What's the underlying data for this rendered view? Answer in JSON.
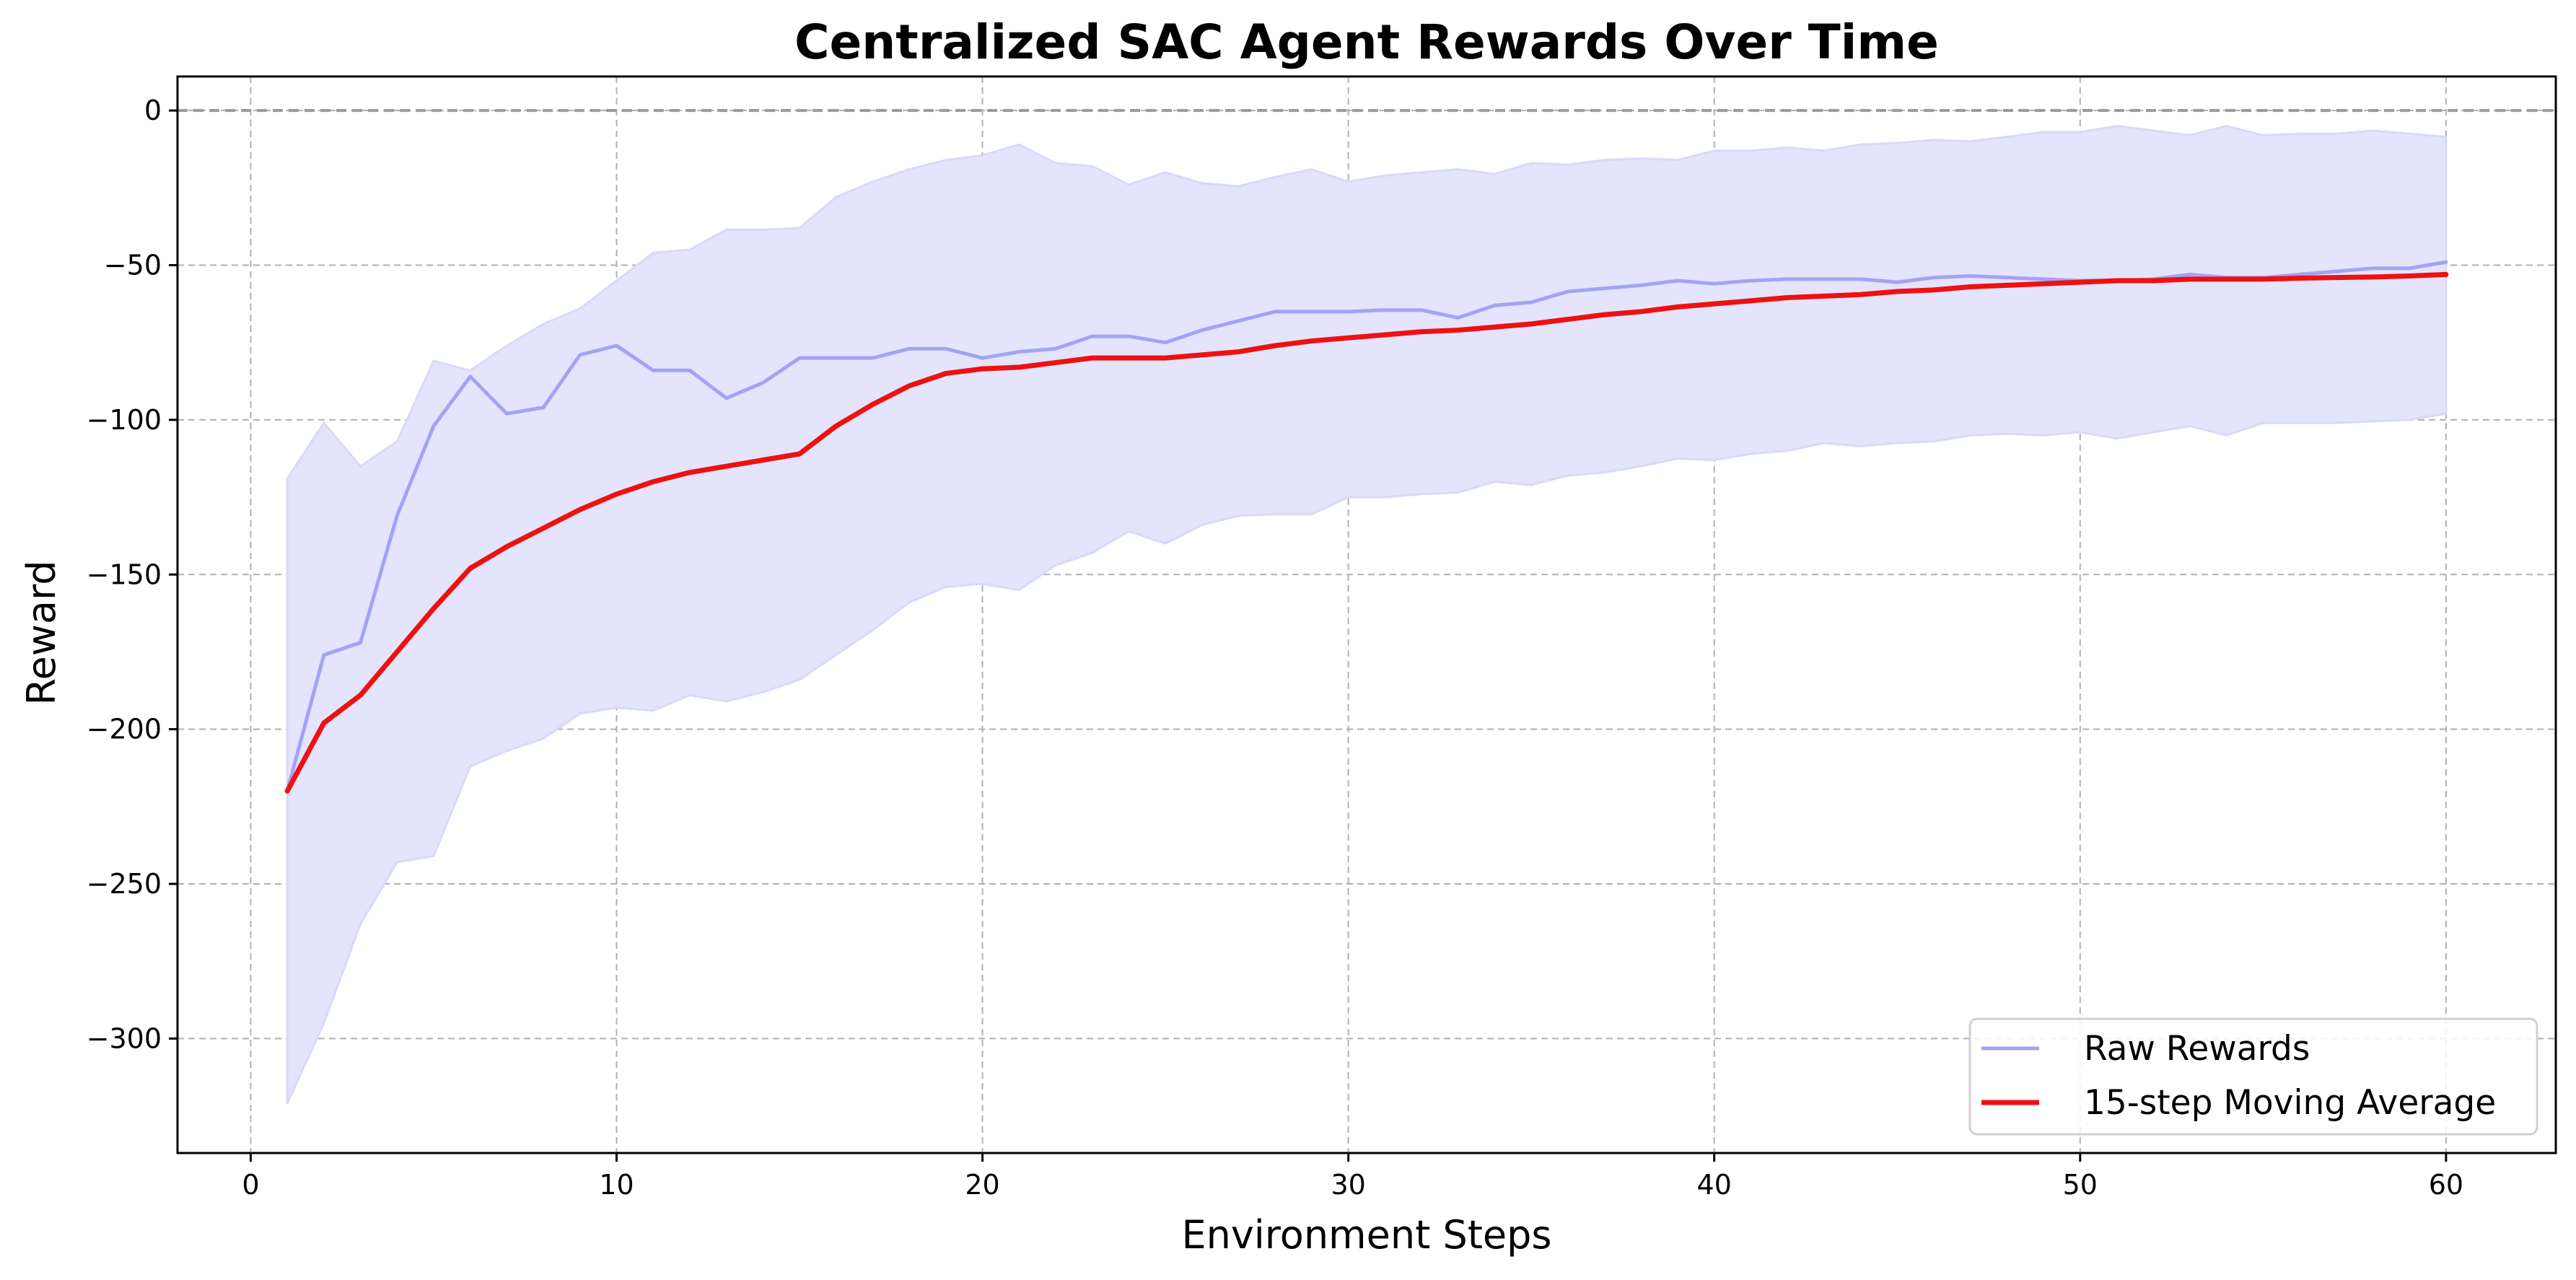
{
  "chart_data": {
    "type": "line",
    "title": "Centralized SAC Agent Rewards Over Time",
    "xlabel": "Environment Steps",
    "ylabel": "Reward",
    "xlim": [
      -2,
      63
    ],
    "ylim": [
      -337,
      11
    ],
    "xticks": [
      0,
      10,
      20,
      30,
      40,
      50,
      60
    ],
    "yticks": [
      0,
      -50,
      -100,
      -150,
      -200,
      -250,
      -300
    ],
    "xtick_labels": [
      "0",
      "10",
      "20",
      "30",
      "40",
      "50",
      "60"
    ],
    "ytick_labels": [
      "0",
      "−50",
      "−100",
      "−150",
      "−200",
      "−250",
      "−300"
    ],
    "grid": true,
    "reference_line": {
      "y": 0,
      "style": "dashed",
      "color": "#999999"
    },
    "legend_position": "lower-right",
    "x": [
      1,
      2,
      3,
      4,
      5,
      6,
      7,
      8,
      9,
      10,
      11,
      12,
      13,
      14,
      15,
      16,
      17,
      18,
      19,
      20,
      21,
      22,
      23,
      24,
      25,
      26,
      27,
      28,
      29,
      30,
      31,
      32,
      33,
      34,
      35,
      36,
      37,
      38,
      39,
      40,
      41,
      42,
      43,
      44,
      45,
      46,
      47,
      48,
      49,
      50,
      51,
      52,
      53,
      54,
      55,
      56,
      57,
      58,
      59,
      60
    ],
    "series": [
      {
        "name": "Raw Rewards",
        "color": "#a3a3f5",
        "values": [
          -220,
          -176,
          -172,
          -131,
          -102,
          -86,
          -98,
          -96,
          -79,
          -76,
          -84,
          -84,
          -93,
          -88,
          -80,
          -80,
          -80,
          -77,
          -77,
          -80,
          -78,
          -77,
          -73,
          -73,
          -75,
          -71,
          -68,
          -65,
          -65,
          -65,
          -64.5,
          -64.5,
          -67,
          -63,
          -62,
          -58.5,
          -57.5,
          -56.5,
          -55,
          -56,
          -55,
          -54.5,
          -54.5,
          -54.5,
          -55.5,
          -54,
          -53.5,
          -54,
          -54.5,
          -55,
          -55,
          -54.5,
          -53,
          -54,
          -54,
          -53,
          -52,
          -51,
          -51,
          -49
        ]
      },
      {
        "name": "15-step Moving Average",
        "color": "#ee1111",
        "values": [
          -220,
          -198,
          -189,
          -175,
          -161,
          -148,
          -141,
          -135,
          -129,
          -124,
          -120,
          -117,
          -115,
          -113,
          -111,
          -102,
          -95,
          -89,
          -85,
          -83.5,
          -83,
          -81.5,
          -80,
          -80,
          -80,
          -79,
          -78,
          -76,
          -74.5,
          -73.5,
          -72.5,
          -71.5,
          -71,
          -70,
          -69,
          -67.5,
          -66,
          -65,
          -63.5,
          -62.5,
          -61.5,
          -60.5,
          -60,
          -59.5,
          -58.5,
          -58,
          -57,
          -56.5,
          -56,
          -55.5,
          -55,
          -55,
          -54.5,
          -54.5,
          -54.5,
          -54.2,
          -54,
          -53.8,
          -53.5,
          -53
        ]
      }
    ],
    "band": {
      "upper": [
        -119,
        -101,
        -115,
        -107,
        -81,
        -84,
        -76,
        -69,
        -64,
        -55,
        -46,
        -45,
        -38.5,
        -38.5,
        -38,
        -28,
        -23,
        -19,
        -16,
        -14.5,
        -11,
        -17,
        -18,
        -24,
        -20,
        -23.5,
        -24.5,
        -21.5,
        -19,
        -23,
        -21,
        -20,
        -19,
        -20.5,
        -17,
        -17.5,
        -16,
        -15.5,
        -16,
        -13,
        -13,
        -12,
        -13,
        -11,
        -10.5,
        -9.5,
        -10,
        -8.5,
        -7,
        -7,
        -5,
        -6.5,
        -8,
        -5,
        -8,
        -7.5,
        -7.5,
        -6.5,
        -7.5,
        -8.5
      ],
      "lower": [
        -321,
        -295,
        -263,
        -243,
        -241,
        -212,
        -207,
        -203,
        -195,
        -193,
        -194,
        -189,
        -191,
        -188,
        -184,
        -176,
        -168,
        -159,
        -154,
        -153,
        -155,
        -147,
        -143,
        -136,
        -140,
        -134,
        -131,
        -130.5,
        -130.5,
        -125,
        -125,
        -124,
        -123.5,
        -120,
        -121,
        -118,
        -117,
        -115,
        -112.5,
        -113,
        -111,
        -110,
        -107.5,
        -108.5,
        -107.5,
        -107,
        -105,
        -104.5,
        -105,
        -104,
        -106,
        -104,
        -102,
        -105,
        -101,
        -101,
        -101,
        -100.5,
        -100,
        -98
      ],
      "color": "#e4e4fc"
    }
  }
}
